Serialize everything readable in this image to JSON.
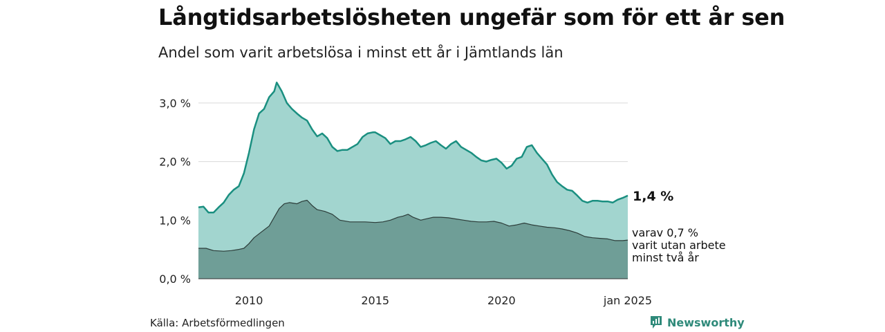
{
  "title": "Långtidsarbetslösheten ungefär som för ett år sen",
  "subtitle": "Andel som varit arbetslösa i minst ett år i Jämtlands län",
  "source": "Källa: Arbetsförmedlingen",
  "brand": "Newsworthy",
  "colors": {
    "total_fill": "#a2d5cf",
    "total_line": "#1a8f80",
    "long_fill": "#6f9e97",
    "long_line": "#2c3c39",
    "grid": "#d9d9d9",
    "brand": "#2f8a7a"
  },
  "chart_data": {
    "type": "area",
    "title": "Långtidsarbetslösheten ungefär som för ett år sen",
    "subtitle": "Andel som varit arbetslösa i minst ett år i Jämtlands län",
    "x_ticks": [
      {
        "x": 2010,
        "label": "2010"
      },
      {
        "x": 2015,
        "label": "2015"
      },
      {
        "x": 2020,
        "label": "2020"
      },
      {
        "x": 2025,
        "label": "jan 2025"
      }
    ],
    "y_ticks": [
      {
        "y": 0,
        "label": "0,0 %"
      },
      {
        "y": 1,
        "label": "1,0 %"
      },
      {
        "y": 2,
        "label": "2,0 %"
      },
      {
        "y": 3,
        "label": "3,0 %"
      }
    ],
    "xlim": [
      2008.0,
      2025.0
    ],
    "ylim": [
      0,
      3.4
    ],
    "grid": true,
    "series": [
      {
        "key": "total",
        "label": "1,4 %",
        "points": [
          [
            2008.0,
            1.22
          ],
          [
            2008.2,
            1.23
          ],
          [
            2008.4,
            1.13
          ],
          [
            2008.6,
            1.13
          ],
          [
            2008.8,
            1.22
          ],
          [
            2009.0,
            1.3
          ],
          [
            2009.2,
            1.43
          ],
          [
            2009.4,
            1.52
          ],
          [
            2009.6,
            1.58
          ],
          [
            2009.8,
            1.8
          ],
          [
            2010.0,
            2.15
          ],
          [
            2010.2,
            2.55
          ],
          [
            2010.4,
            2.82
          ],
          [
            2010.6,
            2.9
          ],
          [
            2010.8,
            3.1
          ],
          [
            2011.0,
            3.2
          ],
          [
            2011.1,
            3.35
          ],
          [
            2011.3,
            3.2
          ],
          [
            2011.5,
            3.0
          ],
          [
            2011.7,
            2.9
          ],
          [
            2011.9,
            2.82
          ],
          [
            2012.1,
            2.75
          ],
          [
            2012.3,
            2.7
          ],
          [
            2012.5,
            2.55
          ],
          [
            2012.7,
            2.43
          ],
          [
            2012.9,
            2.48
          ],
          [
            2013.1,
            2.4
          ],
          [
            2013.3,
            2.25
          ],
          [
            2013.5,
            2.18
          ],
          [
            2013.7,
            2.2
          ],
          [
            2013.9,
            2.2
          ],
          [
            2014.1,
            2.25
          ],
          [
            2014.3,
            2.3
          ],
          [
            2014.5,
            2.42
          ],
          [
            2014.7,
            2.48
          ],
          [
            2014.9,
            2.5
          ],
          [
            2015.0,
            2.5
          ],
          [
            2015.2,
            2.45
          ],
          [
            2015.4,
            2.4
          ],
          [
            2015.6,
            2.3
          ],
          [
            2015.8,
            2.35
          ],
          [
            2016.0,
            2.35
          ],
          [
            2016.2,
            2.38
          ],
          [
            2016.4,
            2.42
          ],
          [
            2016.6,
            2.35
          ],
          [
            2016.8,
            2.25
          ],
          [
            2017.0,
            2.28
          ],
          [
            2017.2,
            2.32
          ],
          [
            2017.4,
            2.35
          ],
          [
            2017.6,
            2.28
          ],
          [
            2017.8,
            2.22
          ],
          [
            2018.0,
            2.3
          ],
          [
            2018.2,
            2.35
          ],
          [
            2018.4,
            2.25
          ],
          [
            2018.6,
            2.2
          ],
          [
            2018.8,
            2.15
          ],
          [
            2019.0,
            2.08
          ],
          [
            2019.2,
            2.02
          ],
          [
            2019.4,
            2.0
          ],
          [
            2019.6,
            2.03
          ],
          [
            2019.8,
            2.05
          ],
          [
            2020.0,
            1.98
          ],
          [
            2020.2,
            1.88
          ],
          [
            2020.4,
            1.93
          ],
          [
            2020.6,
            2.05
          ],
          [
            2020.8,
            2.08
          ],
          [
            2021.0,
            2.25
          ],
          [
            2021.2,
            2.28
          ],
          [
            2021.4,
            2.15
          ],
          [
            2021.6,
            2.05
          ],
          [
            2021.8,
            1.95
          ],
          [
            2022.0,
            1.78
          ],
          [
            2022.2,
            1.65
          ],
          [
            2022.4,
            1.58
          ],
          [
            2022.6,
            1.52
          ],
          [
            2022.8,
            1.5
          ],
          [
            2023.0,
            1.42
          ],
          [
            2023.2,
            1.33
          ],
          [
            2023.4,
            1.3
          ],
          [
            2023.6,
            1.33
          ],
          [
            2023.8,
            1.33
          ],
          [
            2024.0,
            1.32
          ],
          [
            2024.2,
            1.32
          ],
          [
            2024.4,
            1.3
          ],
          [
            2024.6,
            1.35
          ],
          [
            2024.8,
            1.38
          ],
          [
            2025.0,
            1.42
          ]
        ]
      },
      {
        "key": "long",
        "label_lines": [
          "varav 0,7 %",
          "varit utan arbete",
          "minst två år"
        ],
        "points": [
          [
            2008.0,
            0.52
          ],
          [
            2008.3,
            0.52
          ],
          [
            2008.6,
            0.48
          ],
          [
            2009.0,
            0.47
          ],
          [
            2009.3,
            0.48
          ],
          [
            2009.6,
            0.5
          ],
          [
            2009.8,
            0.52
          ],
          [
            2010.0,
            0.6
          ],
          [
            2010.2,
            0.7
          ],
          [
            2010.5,
            0.8
          ],
          [
            2010.8,
            0.9
          ],
          [
            2011.0,
            1.05
          ],
          [
            2011.2,
            1.2
          ],
          [
            2011.4,
            1.28
          ],
          [
            2011.6,
            1.3
          ],
          [
            2011.9,
            1.28
          ],
          [
            2012.1,
            1.32
          ],
          [
            2012.3,
            1.34
          ],
          [
            2012.5,
            1.25
          ],
          [
            2012.7,
            1.18
          ],
          [
            2013.0,
            1.15
          ],
          [
            2013.3,
            1.1
          ],
          [
            2013.6,
            1.0
          ],
          [
            2014.0,
            0.97
          ],
          [
            2014.3,
            0.97
          ],
          [
            2014.6,
            0.97
          ],
          [
            2015.0,
            0.96
          ],
          [
            2015.3,
            0.97
          ],
          [
            2015.6,
            1.0
          ],
          [
            2015.9,
            1.05
          ],
          [
            2016.1,
            1.07
          ],
          [
            2016.3,
            1.1
          ],
          [
            2016.5,
            1.05
          ],
          [
            2016.8,
            1.0
          ],
          [
            2017.0,
            1.02
          ],
          [
            2017.3,
            1.05
          ],
          [
            2017.6,
            1.05
          ],
          [
            2017.9,
            1.04
          ],
          [
            2018.2,
            1.02
          ],
          [
            2018.5,
            1.0
          ],
          [
            2018.8,
            0.98
          ],
          [
            2019.1,
            0.97
          ],
          [
            2019.4,
            0.97
          ],
          [
            2019.7,
            0.98
          ],
          [
            2020.0,
            0.95
          ],
          [
            2020.3,
            0.9
          ],
          [
            2020.6,
            0.92
          ],
          [
            2020.9,
            0.95
          ],
          [
            2021.2,
            0.92
          ],
          [
            2021.5,
            0.9
          ],
          [
            2021.8,
            0.88
          ],
          [
            2022.1,
            0.87
          ],
          [
            2022.4,
            0.85
          ],
          [
            2022.7,
            0.82
          ],
          [
            2023.0,
            0.78
          ],
          [
            2023.3,
            0.72
          ],
          [
            2023.6,
            0.7
          ],
          [
            2023.9,
            0.69
          ],
          [
            2024.2,
            0.68
          ],
          [
            2024.5,
            0.65
          ],
          [
            2024.8,
            0.65
          ],
          [
            2025.0,
            0.66
          ]
        ]
      }
    ]
  }
}
